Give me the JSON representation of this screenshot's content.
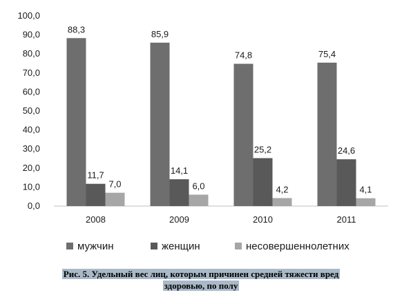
{
  "chart_data": {
    "type": "bar",
    "categories": [
      "2008",
      "2009",
      "2010",
      "2011"
    ],
    "series": [
      {
        "name": "мужчин",
        "values": [
          88.3,
          85.9,
          74.8,
          75.4
        ],
        "color": "#6e6e6e"
      },
      {
        "name": "женщин",
        "values": [
          11.7,
          14.1,
          25.2,
          24.6
        ],
        "color": "#595959"
      },
      {
        "name": "несовершеннолетних",
        "values": [
          7.0,
          6.0,
          4.2,
          4.1
        ],
        "color": "#a6a6a6"
      }
    ],
    "ylim": [
      0,
      100
    ],
    "yticks": [
      "0,0",
      "10,0",
      "20,0",
      "30,0",
      "40,0",
      "50,0",
      "60,0",
      "70,0",
      "80,0",
      "90,0",
      "100,0"
    ],
    "data_labels": [
      [
        "88,3",
        "85,9",
        "74,8",
        "75,4"
      ],
      [
        "11,7",
        "14,1",
        "25,2",
        "24,6"
      ],
      [
        "7,0",
        "6,0",
        "4,2",
        "4,1"
      ]
    ],
    "grid": false,
    "legend_position": "bottom"
  },
  "caption": {
    "line1": "Рис. 5. Удельный вес лиц, которым причинен средней тяжести вред",
    "line2": "здоровью, по полу"
  }
}
